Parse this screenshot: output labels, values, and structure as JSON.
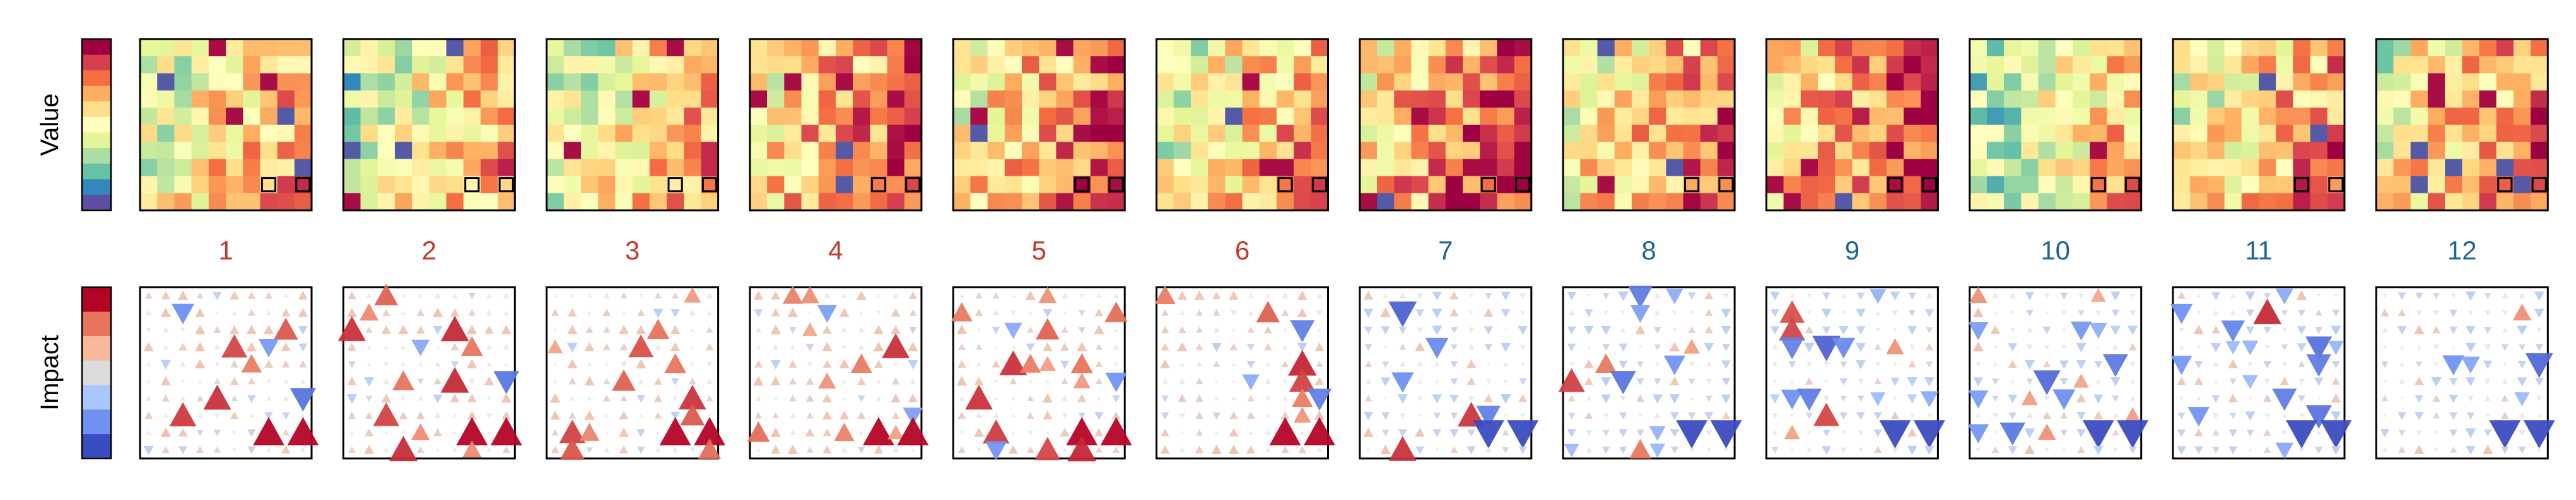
{
  "chart_data": {
    "type": "heatmap",
    "rows": [
      {
        "label": "Value",
        "kind": "value-grid"
      },
      {
        "label": "Impact",
        "kind": "impact-triangles"
      }
    ],
    "panels": [
      "1",
      "2",
      "3",
      "4",
      "5",
      "6",
      "7",
      "8",
      "9",
      "10",
      "11",
      "12"
    ],
    "panel_label_colors": [
      "#c0392b",
      "#c0392b",
      "#c0392b",
      "#c0392b",
      "#c0392b",
      "#c0392b",
      "#1f6391",
      "#1f6391",
      "#1f6391",
      "#1f6391",
      "#1f6391",
      "#1f6391"
    ],
    "grid_size": [
      10,
      10
    ],
    "highlighted_cells": [
      [
        8,
        9
      ],
      [
        10,
        9
      ]
    ],
    "value_colormap": [
      "#5e4fa2",
      "#3288bd",
      "#66c2a5",
      "#abdda4",
      "#e6f598",
      "#ffffbf",
      "#fee08b",
      "#fdae61",
      "#f46d43",
      "#d53e4f",
      "#9e0142"
    ],
    "impact_colormap": [
      "#3b4cc0",
      "#6f92f3",
      "#aac7fd",
      "#dddcdc",
      "#f7b89c",
      "#e7745b",
      "#b40426"
    ]
  }
}
